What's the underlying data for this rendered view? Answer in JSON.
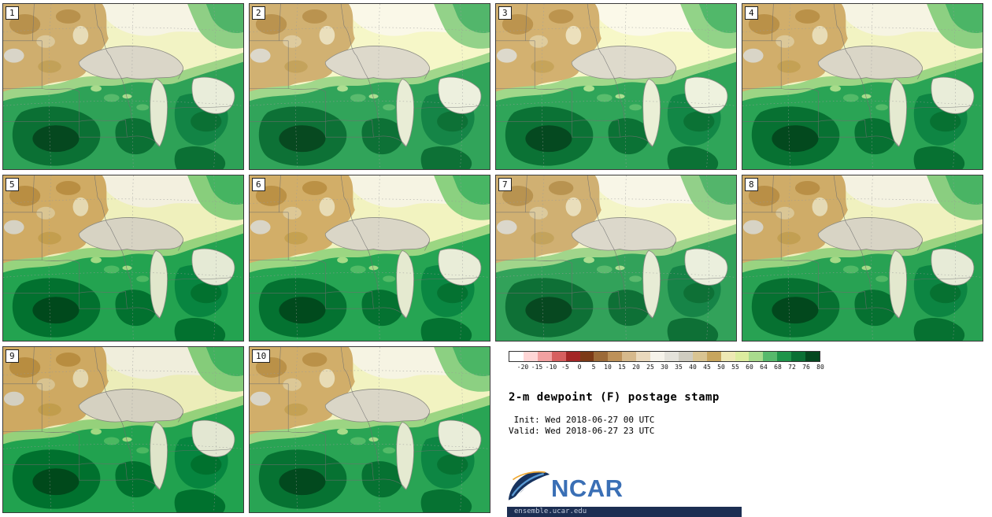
{
  "panels": [
    {
      "label": "1"
    },
    {
      "label": "2"
    },
    {
      "label": "3"
    },
    {
      "label": "4"
    },
    {
      "label": "5"
    },
    {
      "label": "6"
    },
    {
      "label": "7"
    },
    {
      "label": "8"
    },
    {
      "label": "9"
    },
    {
      "label": "10"
    }
  ],
  "legend": {
    "title": "2-m dewpoint (F) postage stamp",
    "init": " Init: Wed 2018-06-27 00 UTC",
    "valid": "Valid: Wed 2018-06-27 23 UTC",
    "colorbar": {
      "tick_labels": [
        "-20",
        "-15",
        "-10",
        "-5",
        "0",
        "5",
        "10",
        "15",
        "20",
        "25",
        "30",
        "35",
        "40",
        "45",
        "50",
        "55",
        "60",
        "64",
        "68",
        "72",
        "76",
        "80"
      ],
      "colors": [
        "#ffffff",
        "#ffd6d6",
        "#f2a1a1",
        "#d65f5f",
        "#a32626",
        "#7c3a17",
        "#9c6a38",
        "#bd9159",
        "#d6b98c",
        "#ead9bd",
        "#f6f3ea",
        "#e4e2da",
        "#cfccc0",
        "#d9c492",
        "#c7a55e",
        "#eee8b4",
        "#dcec9f",
        "#a9db8d",
        "#57b96b",
        "#1f9449",
        "#0b7034",
        "#05481f"
      ],
      "units": "F"
    }
  },
  "branding": {
    "logo_text": "NCAR",
    "logo_color": "#3a6fb5",
    "footer_text": "ensemble.ucar.edu",
    "footer_bg": "#1c2e52"
  }
}
